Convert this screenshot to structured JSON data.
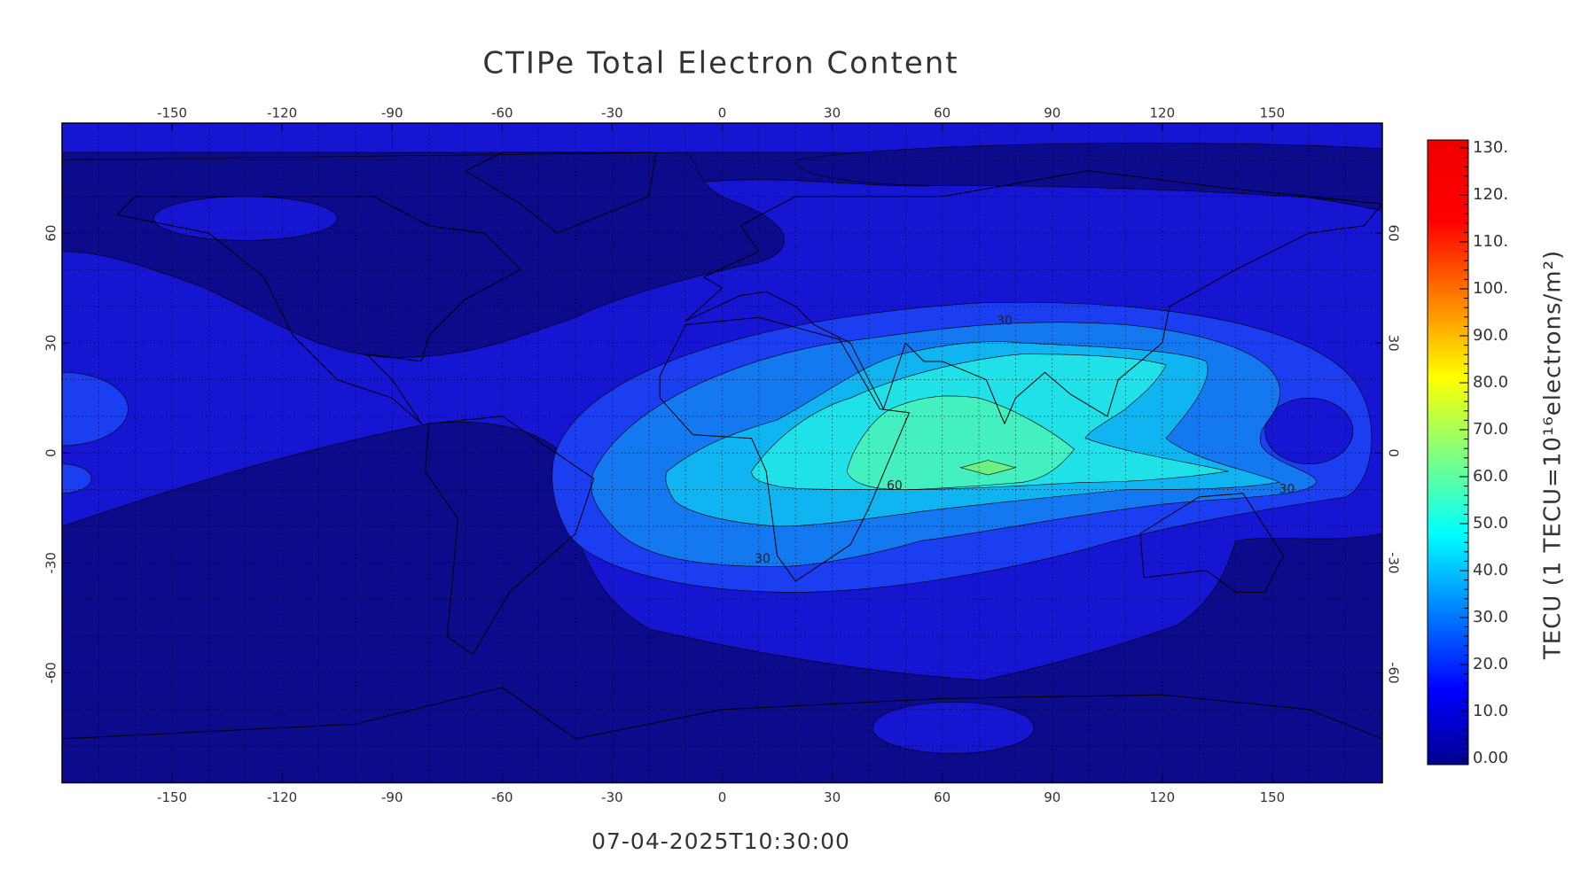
{
  "title": "CTIPe Total Electron Content",
  "timestamp": "07-04-2025T10:30:00",
  "map": {
    "lonlim": [
      -180,
      180
    ],
    "latlim": [
      -90,
      90
    ],
    "lon_ticks": [
      -150,
      -120,
      -90,
      -60,
      -30,
      0,
      30,
      60,
      90,
      120,
      150
    ],
    "lat_ticks": [
      -60,
      -30,
      0,
      30,
      60
    ],
    "contour_labels": [
      30,
      30,
      30,
      60
    ]
  },
  "colorbar": {
    "label": "TECU (1 TECU=10¹⁶electrons/m²)",
    "ticks": [
      {
        "value": 0,
        "label": "0.00"
      },
      {
        "value": 10,
        "label": "10.0"
      },
      {
        "value": 20,
        "label": "20.0"
      },
      {
        "value": 30,
        "label": "30.0"
      },
      {
        "value": 40,
        "label": "40.0"
      },
      {
        "value": 50,
        "label": "50.0"
      },
      {
        "value": 60,
        "label": "60.0"
      },
      {
        "value": 70,
        "label": "70.0"
      },
      {
        "value": 80,
        "label": "80.0"
      },
      {
        "value": 90,
        "label": "90.0"
      },
      {
        "value": 100,
        "label": "100."
      },
      {
        "value": 110,
        "label": "110."
      },
      {
        "value": 120,
        "label": "120."
      },
      {
        "value": 130,
        "label": "130."
      }
    ]
  }
}
